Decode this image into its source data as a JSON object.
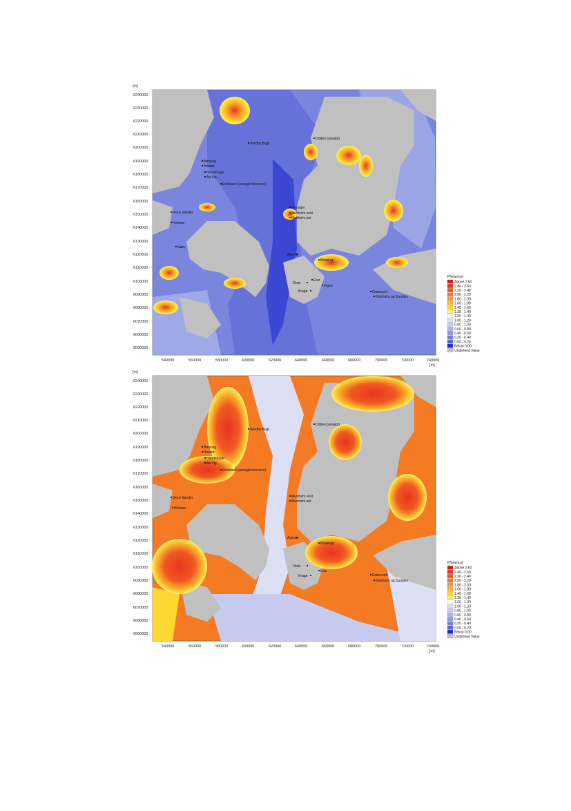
{
  "maps": [
    {
      "id": "top",
      "unit": "[m]",
      "x_ticks": [
        "540000",
        "560000",
        "580000",
        "600000",
        "620000",
        "640000",
        "660000",
        "680000",
        "700000",
        "720000",
        "740000"
      ],
      "y_ticks": [
        "6240000",
        "6230000",
        "6220000",
        "6210000",
        "6200000",
        "6190000",
        "6180000",
        "6170000",
        "6160000",
        "6150000",
        "6140000",
        "6130000",
        "6120000",
        "6110000",
        "6100000",
        "6090000",
        "6080000",
        "6070000",
        "6060000",
        "6050000"
      ],
      "x_unit": "[m]",
      "places": [
        "Odden (ansøgt)",
        "Nordby Bugt",
        "Bønsvig",
        "Hvalsø",
        "Hundshage",
        "Aa Vig",
        "Endelave (ansøgt/reference)",
        "Mariager",
        "Musholm vest",
        "Musholm øst",
        "Vejrø Sønder",
        "Helnæs",
        "Agersø",
        "Bisserup",
        "Omø",
        "Enø",
        "Kragø",
        "Vigsø",
        "Grønsund",
        "Klintholm og Sundlex",
        "Søby"
      ],
      "legend_title": "Pfortencol",
      "legend": [
        "Above 2.60",
        "2.40 - 2.60",
        "2.20 - 2.40",
        "2.00 - 2.20",
        "1.80 - 2.00",
        "1.60 - 1.80",
        "1.40 - 1.60",
        "1.30 - 1.40",
        "1.20 - 1.30",
        "1.00 - 1.20",
        "0.80 - 1.00",
        "0.60 - 0.80",
        "0.40 - 0.60",
        "0.20 - 0.40",
        "0.00 - 0.20",
        "Below 0.00",
        "Undefined Value"
      ]
    },
    {
      "id": "bottom",
      "unit": "[m]",
      "x_ticks": [
        "540000",
        "560000",
        "580000",
        "600000",
        "620000",
        "640000",
        "660000",
        "680000",
        "700000",
        "720000",
        "740000"
      ],
      "y_ticks": [
        "6240000",
        "6230000",
        "6220000",
        "6210000",
        "6200000",
        "6190000",
        "6180000",
        "6170000",
        "6160000",
        "6150000",
        "6140000",
        "6130000",
        "6120000",
        "6110000",
        "6100000",
        "6090000",
        "6080000",
        "6070000",
        "6060000",
        "6050000"
      ],
      "x_unit": "[m]",
      "places": [
        "Odden (ansøgt)",
        "Nordby Bugt",
        "Bønsvig",
        "Hvalsø",
        "Hundshage",
        "Aa Vig",
        "Endelave (ansøgt/reference)",
        "Vejrø Sønder",
        "Helnæs",
        "Musholm vest",
        "Musholm øst",
        "Agersø",
        "Bisserup",
        "Omø",
        "Enø",
        "Kragø",
        "Grønsund",
        "Klintholm og Sundlex"
      ],
      "legend_title": "Pfortencol",
      "legend": [
        "Above 2.60",
        "2.40 - 2.60",
        "2.20 - 2.40",
        "2.00 - 2.20",
        "1.80 - 2.00",
        "1.60 - 1.80",
        "1.40 - 1.60",
        "1.30 - 1.40",
        "1.20 - 1.30",
        "1.00 - 1.20",
        "0.80 - 1.00",
        "0.60 - 0.80",
        "0.40 - 0.60",
        "0.20 - 0.40",
        "0.00 - 0.20",
        "Below 0.00",
        "Undefined Value"
      ]
    }
  ],
  "colors": {
    "legend": [
      "#d7191c",
      "#e8351f",
      "#f05a22",
      "#f47a24",
      "#f79a27",
      "#fbba2a",
      "#fdd830",
      "#f7f26a",
      "#ffffff",
      "#dde0f5",
      "#c6cbef",
      "#aab2ea",
      "#8f99e4",
      "#7580dd",
      "#5a66d6",
      "#1f2bd0",
      "#c0c0c0"
    ],
    "land": "#c0c0c0"
  }
}
